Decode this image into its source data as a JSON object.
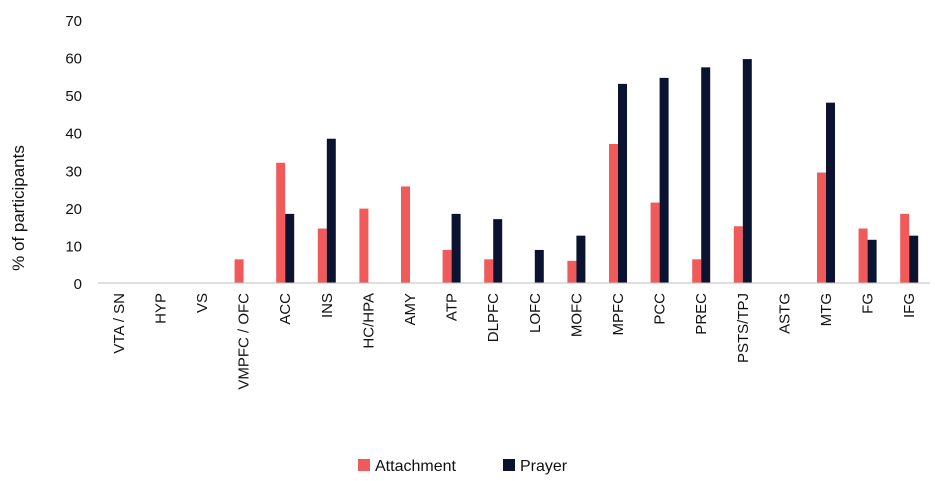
{
  "chart_data": {
    "type": "bar",
    "title": "",
    "xlabel": "",
    "ylabel": "% of participants",
    "ylim": [
      0,
      70
    ],
    "yticks": [
      0,
      10,
      20,
      30,
      40,
      50,
      60,
      70
    ],
    "grid": false,
    "legend_position": "bottom-center",
    "categories": [
      "VTA / SN",
      "HYP",
      "VS",
      "VMPFC / OFC",
      "ACC",
      "INS",
      "HC/HPA",
      "AMY",
      "ATP",
      "DLPFC",
      "LOFC",
      "MOFC",
      "MPFC",
      "PCC",
      "PREC",
      "PSTS/TPJ",
      "ASTG",
      "MTG",
      "FG",
      "IFG"
    ],
    "series": [
      {
        "name": "Attachment",
        "color": "#f05a5a",
        "values": [
          0,
          0,
          0,
          6.3,
          32,
          14.5,
          19.8,
          25.7,
          8.8,
          6.3,
          0,
          5.9,
          37,
          21.4,
          6.3,
          15.1,
          0,
          29.4,
          14.5,
          18.4
        ]
      },
      {
        "name": "Prayer",
        "color": "#0b1330",
        "values": [
          0,
          0,
          0,
          0,
          18.4,
          38.4,
          0,
          0,
          18.4,
          17,
          8.8,
          12.6,
          53,
          54.6,
          57.4,
          59.6,
          0,
          48,
          11.5,
          12.6
        ]
      }
    ]
  }
}
